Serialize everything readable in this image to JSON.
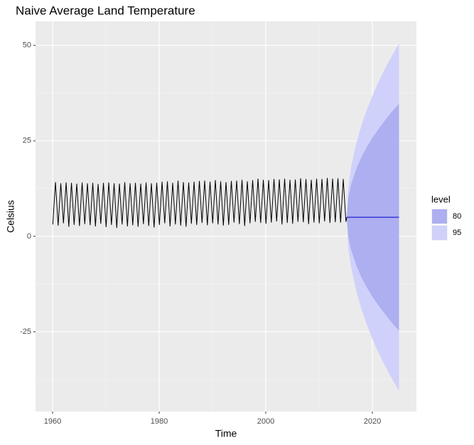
{
  "chart_data": {
    "type": "line",
    "title": "Naive Average Land Temperature",
    "x_label": "Time",
    "y_label": "Celsius",
    "xlim": [
      1956.8,
      2028.27
    ],
    "ylim": [
      -45.9,
      56.3
    ],
    "xticks": [
      1960,
      1980,
      2000,
      2020
    ],
    "yticks": [
      -25,
      0,
      25,
      50
    ],
    "grid": true,
    "series": [
      {
        "color": "#000000",
        "x": [
          1960.04,
          1960.54,
          1961.04,
          1961.54,
          1962.04,
          1962.54,
          1963.04,
          1963.54,
          1964.04,
          1964.54,
          1965.04,
          1965.54,
          1966.04,
          1966.54,
          1967.04,
          1967.54,
          1968.04,
          1968.54,
          1969.04,
          1969.54,
          1970.04,
          1970.54,
          1971.04,
          1971.54,
          1972.04,
          1972.54,
          1973.04,
          1973.54,
          1974.04,
          1974.54,
          1975.04,
          1975.54,
          1976.04,
          1976.54,
          1977.04,
          1977.54,
          1978.04,
          1978.54,
          1979.04,
          1979.54,
          1980.04,
          1980.54,
          1981.04,
          1981.54,
          1982.04,
          1982.54,
          1983.04,
          1983.54,
          1984.04,
          1984.54,
          1985.04,
          1985.54,
          1986.04,
          1986.54,
          1987.04,
          1987.54,
          1988.04,
          1988.54,
          1989.04,
          1989.54,
          1990.04,
          1990.54,
          1991.04,
          1991.54,
          1992.04,
          1992.54,
          1993.04,
          1993.54,
          1994.04,
          1994.54,
          1995.04,
          1995.54,
          1996.04,
          1996.54,
          1997.04,
          1997.54,
          1998.04,
          1998.54,
          1999.04,
          1999.54,
          2000.04,
          2000.54,
          2001.04,
          2001.54,
          2002.04,
          2002.54,
          2003.04,
          2003.54,
          2004.04,
          2004.54,
          2005.04,
          2005.54,
          2006.04,
          2006.54,
          2007.04,
          2007.54,
          2008.04,
          2008.54,
          2009.04,
          2009.54,
          2010.04,
          2010.54,
          2011.04,
          2011.54,
          2012.04,
          2012.54,
          2013.04,
          2013.54,
          2014.04,
          2014.54,
          2015.04,
          2015.2
        ],
        "values": [
          3.1,
          14.2,
          2.8,
          13.9,
          3.4,
          14.1,
          2.5,
          14.0,
          3.0,
          13.8,
          2.7,
          14.1,
          3.2,
          13.9,
          2.9,
          14.0,
          2.6,
          13.7,
          3.3,
          14.0,
          2.4,
          14.1,
          3.0,
          13.9,
          2.2,
          13.8,
          3.1,
          14.2,
          2.6,
          13.9,
          2.9,
          14.0,
          2.5,
          13.8,
          3.2,
          14.1,
          2.7,
          13.9,
          2.3,
          14.0,
          3.0,
          14.3,
          3.4,
          14.4,
          2.6,
          14.0,
          3.1,
          14.6,
          2.8,
          14.2,
          2.5,
          14.1,
          3.3,
          14.3,
          3.0,
          14.5,
          3.5,
          14.6,
          2.9,
          14.3,
          3.4,
          14.7,
          3.1,
          14.4,
          2.8,
          14.2,
          3.0,
          14.5,
          3.6,
          14.6,
          3.2,
          14.8,
          2.7,
          14.4,
          3.4,
          14.7,
          3.8,
          15.1,
          3.5,
          14.8,
          3.3,
          14.7,
          3.6,
          15.0,
          3.9,
          14.9,
          3.1,
          15.1,
          3.5,
          14.8,
          3.3,
          14.9,
          3.8,
          15.2,
          3.7,
          15.0,
          3.2,
          14.8,
          3.6,
          15.1,
          3.4,
          15.0,
          3.9,
          15.3,
          3.5,
          15.1,
          3.7,
          15.2,
          3.6,
          15.0,
          3.8,
          5
        ]
      }
    ],
    "forecast": {
      "color": "#0000cc",
      "x": [
        2015.2,
        2015.5,
        2016,
        2017,
        2018,
        2019,
        2020,
        2021,
        2022,
        2023,
        2024,
        2025
      ],
      "mean": [
        5,
        5,
        5,
        5,
        5,
        5,
        5,
        5,
        5,
        5,
        5,
        5
      ]
    },
    "legend_title": "level",
    "bands": [
      {
        "name": "95",
        "color": "#d0d1fa",
        "upper": [
          5,
          13,
          18,
          24.5,
          29.3,
          33.3,
          36.8,
          40,
          42.9,
          45.6,
          48.1,
          50.5
        ],
        "lower": [
          5,
          -3,
          -8,
          -14.5,
          -19.3,
          -23.3,
          -26.8,
          -30,
          -32.9,
          -35.6,
          -38.1,
          -40.5
        ]
      },
      {
        "name": "80",
        "color": "#adaff0",
        "upper": [
          5,
          10.2,
          13.5,
          17.7,
          20.9,
          23.5,
          25.8,
          27.8,
          29.7,
          31.5,
          33.2,
          34.7
        ],
        "lower": [
          5,
          -0.2,
          -3.5,
          -7.7,
          -10.9,
          -13.5,
          -15.8,
          -17.8,
          -19.7,
          -21.5,
          -23.2,
          -24.7
        ]
      }
    ]
  }
}
